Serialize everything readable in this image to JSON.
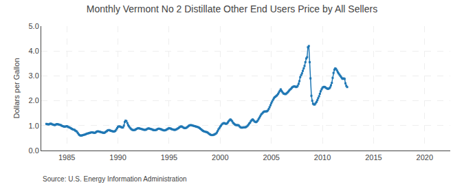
{
  "chart_data": {
    "type": "line",
    "title": "Monthly Vermont No 2 Distillate Other End Users Price by All Sellers",
    "ylabel": "Dollars per Gallon",
    "annotations": [
      "Source: U.S. Energy Information Administration"
    ],
    "marker": "square",
    "grid": true,
    "xlim": [
      1982.5,
      2022.5
    ],
    "ylim": [
      0.0,
      5.0
    ],
    "xticks": [
      1985,
      1990,
      1995,
      2000,
      2005,
      2010,
      2015,
      2020
    ],
    "yticks": [
      {
        "value": 0.0,
        "label": "0.0"
      },
      {
        "value": 1.0,
        "label": "1.0"
      },
      {
        "value": 2.0,
        "label": "2.0"
      },
      {
        "value": 3.0,
        "label": "3.0"
      },
      {
        "value": 4.0,
        "label": "4.0"
      },
      {
        "value": 5.0,
        "label": "5.0"
      }
    ],
    "x": [
      1983.0,
      1983.08,
      1983.17,
      1983.25,
      1983.33,
      1983.42,
      1983.5,
      1983.58,
      1983.67,
      1983.75,
      1983.83,
      1983.92,
      1984.0,
      1984.08,
      1984.17,
      1984.25,
      1984.33,
      1984.42,
      1984.5,
      1984.58,
      1984.67,
      1984.75,
      1984.83,
      1984.92,
      1985.0,
      1985.08,
      1985.17,
      1985.25,
      1985.33,
      1985.42,
      1985.5,
      1985.58,
      1985.67,
      1985.75,
      1985.83,
      1985.92,
      1986.0,
      1986.08,
      1986.17,
      1986.25,
      1986.33,
      1986.42,
      1986.5,
      1986.58,
      1986.67,
      1986.75,
      1986.83,
      1986.92,
      1987.0,
      1987.08,
      1987.17,
      1987.25,
      1987.33,
      1987.42,
      1987.5,
      1987.58,
      1987.67,
      1987.75,
      1987.83,
      1987.92,
      1988.0,
      1988.08,
      1988.17,
      1988.25,
      1988.33,
      1988.42,
      1988.5,
      1988.58,
      1988.67,
      1988.75,
      1988.83,
      1988.92,
      1989.0,
      1989.08,
      1989.17,
      1989.25,
      1989.33,
      1989.42,
      1989.5,
      1989.58,
      1989.67,
      1989.75,
      1989.83,
      1989.92,
      1990.0,
      1990.08,
      1990.17,
      1990.25,
      1990.33,
      1990.42,
      1990.5,
      1990.58,
      1990.67,
      1990.75,
      1990.83,
      1990.92,
      1991.0,
      1991.08,
      1991.17,
      1991.25,
      1991.33,
      1991.42,
      1991.5,
      1991.58,
      1991.67,
      1991.75,
      1991.83,
      1991.92,
      1992.0,
      1992.08,
      1992.17,
      1992.25,
      1992.33,
      1992.42,
      1992.5,
      1992.58,
      1992.67,
      1992.75,
      1992.83,
      1992.92,
      1993.0,
      1993.08,
      1993.17,
      1993.25,
      1993.33,
      1993.42,
      1993.5,
      1993.58,
      1993.67,
      1993.75,
      1993.83,
      1993.92,
      1994.0,
      1994.08,
      1994.17,
      1994.25,
      1994.33,
      1994.42,
      1994.5,
      1994.58,
      1994.67,
      1994.75,
      1994.83,
      1994.92,
      1995.0,
      1995.08,
      1995.17,
      1995.25,
      1995.33,
      1995.42,
      1995.5,
      1995.58,
      1995.67,
      1995.75,
      1995.83,
      1995.92,
      1996.0,
      1996.08,
      1996.17,
      1996.25,
      1996.33,
      1996.42,
      1996.5,
      1996.58,
      1996.67,
      1996.75,
      1996.83,
      1996.92,
      1997.0,
      1997.08,
      1997.17,
      1997.25,
      1997.33,
      1997.42,
      1997.5,
      1997.58,
      1997.67,
      1997.75,
      1997.83,
      1997.92,
      1998.0,
      1998.08,
      1998.17,
      1998.25,
      1998.33,
      1998.42,
      1998.5,
      1998.58,
      1998.67,
      1998.75,
      1998.83,
      1998.92,
      1999.0,
      1999.08,
      1999.17,
      1999.25,
      1999.33,
      1999.42,
      1999.5,
      1999.58,
      1999.67,
      1999.75,
      1999.83,
      1999.92,
      2000.0,
      2000.08,
      2000.17,
      2000.25,
      2000.33,
      2000.42,
      2000.5,
      2000.58,
      2000.67,
      2000.75,
      2000.83,
      2000.92,
      2001.0,
      2001.08,
      2001.17,
      2001.25,
      2001.33,
      2001.42,
      2001.5,
      2001.58,
      2001.67,
      2001.75,
      2001.83,
      2001.92,
      2002.0,
      2002.08,
      2002.17,
      2002.25,
      2002.33,
      2002.42,
      2002.5,
      2002.58,
      2002.67,
      2002.75,
      2002.83,
      2002.92,
      2003.0,
      2003.08,
      2003.17,
      2003.25,
      2003.33,
      2003.42,
      2003.5,
      2003.58,
      2003.67,
      2003.75,
      2003.83,
      2003.92,
      2004.0,
      2004.08,
      2004.17,
      2004.25,
      2004.33,
      2004.42,
      2004.5,
      2004.58,
      2004.67,
      2004.75,
      2004.83,
      2004.92,
      2005.0,
      2005.08,
      2005.17,
      2005.25,
      2005.33,
      2005.42,
      2005.5,
      2005.58,
      2005.67,
      2005.75,
      2005.83,
      2005.92,
      2006.0,
      2006.08,
      2006.17,
      2006.25,
      2006.33,
      2006.42,
      2006.5,
      2006.58,
      2006.67,
      2006.75,
      2006.83,
      2006.92,
      2007.0,
      2007.08,
      2007.17,
      2007.25,
      2007.33,
      2007.42,
      2007.5,
      2007.58,
      2007.67,
      2007.75,
      2007.83,
      2007.92,
      2008.0,
      2008.08,
      2008.17,
      2008.25,
      2008.33,
      2008.42,
      2008.5,
      2008.58,
      2008.67,
      2008.75,
      2008.83,
      2008.92,
      2009.0,
      2009.08,
      2009.17,
      2009.25,
      2009.33,
      2009.42,
      2009.5,
      2009.58,
      2009.67,
      2009.75,
      2009.83,
      2009.92,
      2010.0,
      2010.08,
      2010.17,
      2010.25,
      2010.33,
      2010.42,
      2010.5,
      2010.58,
      2010.67,
      2010.75,
      2010.83,
      2010.92,
      2011.0,
      2011.08,
      2011.17,
      2011.25,
      2011.33,
      2011.42,
      2011.5,
      2011.58,
      2011.67,
      2011.75,
      2011.83,
      2011.92,
      2012.0,
      2012.08,
      2012.17,
      2012.25,
      2012.33,
      2012.42
    ],
    "values": [
      1.07,
      1.06,
      1.05,
      1.05,
      1.07,
      1.08,
      1.07,
      1.05,
      1.04,
      1.03,
      1.02,
      1.04,
      1.06,
      1.06,
      1.05,
      1.04,
      1.03,
      1.02,
      1.0,
      0.98,
      0.97,
      0.96,
      0.96,
      0.97,
      0.98,
      0.96,
      0.94,
      0.93,
      0.91,
      0.89,
      0.87,
      0.85,
      0.84,
      0.83,
      0.8,
      0.78,
      0.75,
      0.7,
      0.65,
      0.62,
      0.6,
      0.6,
      0.61,
      0.62,
      0.63,
      0.64,
      0.65,
      0.67,
      0.68,
      0.69,
      0.7,
      0.71,
      0.72,
      0.73,
      0.73,
      0.72,
      0.71,
      0.71,
      0.73,
      0.76,
      0.77,
      0.77,
      0.76,
      0.75,
      0.74,
      0.73,
      0.72,
      0.71,
      0.71,
      0.73,
      0.76,
      0.78,
      0.81,
      0.82,
      0.82,
      0.8,
      0.79,
      0.78,
      0.77,
      0.76,
      0.77,
      0.79,
      0.84,
      0.9,
      0.95,
      0.97,
      0.97,
      0.95,
      0.94,
      0.92,
      0.93,
      1.0,
      1.15,
      1.2,
      1.18,
      1.1,
      1.02,
      0.97,
      0.92,
      0.88,
      0.85,
      0.83,
      0.82,
      0.82,
      0.83,
      0.85,
      0.87,
      0.89,
      0.9,
      0.89,
      0.88,
      0.87,
      0.86,
      0.85,
      0.84,
      0.83,
      0.83,
      0.84,
      0.86,
      0.88,
      0.89,
      0.88,
      0.87,
      0.86,
      0.85,
      0.83,
      0.82,
      0.82,
      0.82,
      0.83,
      0.85,
      0.87,
      0.88,
      0.87,
      0.86,
      0.85,
      0.83,
      0.82,
      0.81,
      0.81,
      0.82,
      0.84,
      0.86,
      0.88,
      0.9,
      0.89,
      0.88,
      0.86,
      0.85,
      0.84,
      0.83,
      0.83,
      0.84,
      0.86,
      0.88,
      0.9,
      0.93,
      0.95,
      0.97,
      0.96,
      0.94,
      0.92,
      0.9,
      0.9,
      0.91,
      0.93,
      0.96,
      0.99,
      1.01,
      1.02,
      1.02,
      1.01,
      1.0,
      0.99,
      0.98,
      0.97,
      0.96,
      0.95,
      0.94,
      0.92,
      0.9,
      0.87,
      0.84,
      0.81,
      0.79,
      0.77,
      0.76,
      0.75,
      0.74,
      0.73,
      0.7,
      0.67,
      0.65,
      0.63,
      0.62,
      0.62,
      0.63,
      0.64,
      0.66,
      0.68,
      0.72,
      0.78,
      0.85,
      0.9,
      0.96,
      1.0,
      1.05,
      1.08,
      1.1,
      1.1,
      1.08,
      1.07,
      1.09,
      1.13,
      1.18,
      1.22,
      1.25,
      1.22,
      1.18,
      1.12,
      1.08,
      1.05,
      1.03,
      1.02,
      1.02,
      1.02,
      1.0,
      0.96,
      0.93,
      0.92,
      0.92,
      0.93,
      0.93,
      0.93,
      0.94,
      0.96,
      0.99,
      1.03,
      1.08,
      1.12,
      1.18,
      1.22,
      1.25,
      1.22,
      1.18,
      1.15,
      1.14,
      1.16,
      1.2,
      1.26,
      1.32,
      1.38,
      1.44,
      1.48,
      1.52,
      1.55,
      1.57,
      1.57,
      1.57,
      1.58,
      1.61,
      1.67,
      1.74,
      1.82,
      1.9,
      1.97,
      2.04,
      2.1,
      2.14,
      2.17,
      2.2,
      2.23,
      2.28,
      2.34,
      2.4,
      2.46,
      2.4,
      2.35,
      2.3,
      2.28,
      2.27,
      2.27,
      2.3,
      2.33,
      2.37,
      2.41,
      2.45,
      2.48,
      2.52,
      2.55,
      2.57,
      2.58,
      2.57,
      2.55,
      2.56,
      2.6,
      2.68,
      2.79,
      2.95,
      3.03,
      3.1,
      3.2,
      3.3,
      3.4,
      3.55,
      3.7,
      3.75,
      4.15,
      4.2,
      3.55,
      2.9,
      2.2,
      2.0,
      1.88,
      1.85,
      1.85,
      1.9,
      1.95,
      2.02,
      2.1,
      2.18,
      2.28,
      2.38,
      2.46,
      2.52,
      2.55,
      2.56,
      2.55,
      2.52,
      2.5,
      2.48,
      2.48,
      2.5,
      2.54,
      2.62,
      2.72,
      2.92,
      3.12,
      3.25,
      3.3,
      3.28,
      3.22,
      3.15,
      3.1,
      3.05,
      3.0,
      2.95,
      2.9,
      2.88,
      2.9,
      2.88,
      2.7,
      2.6,
      2.55
    ]
  }
}
